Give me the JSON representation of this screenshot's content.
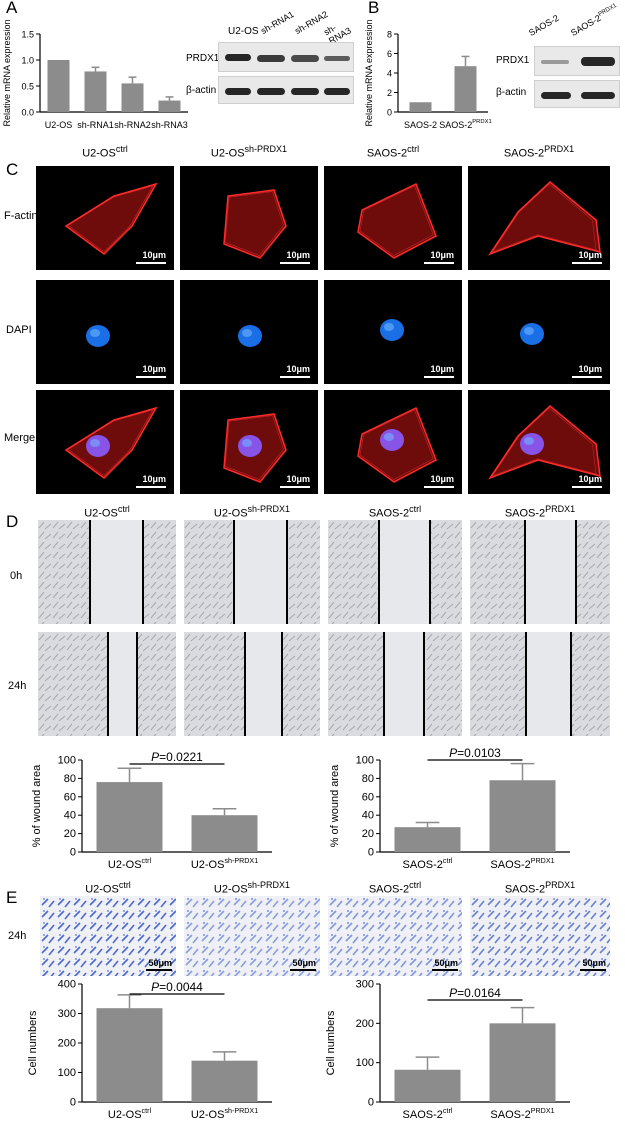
{
  "panel_labels": {
    "A": "A",
    "B": "B",
    "C": "C",
    "D": "D",
    "E": "E"
  },
  "panel_a": {
    "blot_headers": [
      "U2-OS",
      "sh-RNA1",
      "sh-RNA2",
      "sh-RNA3"
    ],
    "blot_rows": [
      "PRDX1",
      "β-actin"
    ],
    "chart": {
      "ylabel": "Relative mRNA expression",
      "yticks": [
        "0.0",
        "0.5",
        "1.0",
        "1.5"
      ],
      "categories": [
        "U2-OS",
        "sh-RNA1",
        "sh-RNA2",
        "sh-RNA3"
      ]
    }
  },
  "panel_b": {
    "blot_headers": [
      "SAOS-2",
      "SAOS-2",
      "PRDX1"
    ],
    "blot_rows": [
      "PRDX1",
      "β-actin"
    ],
    "chart": {
      "ylabel": "Relative mRNA expression",
      "yticks": [
        "0",
        "2",
        "4",
        "6",
        "8"
      ],
      "cat1": "SAOS-2",
      "cat2_base": "SAOS-2",
      "cat2_sup": "PRDX1"
    }
  },
  "panel_c": {
    "columns": [
      {
        "base": "U2-OS",
        "sup": "ctrl"
      },
      {
        "base": "U2-OS",
        "sup": "sh-PRDX1"
      },
      {
        "base": "SAOS-2",
        "sup": "ctrl"
      },
      {
        "base": "SAOS-2",
        "sup": "PRDX1"
      }
    ],
    "rows": [
      "F-actin",
      "DAPI",
      "Merge"
    ],
    "scale": "10μm"
  },
  "panel_d": {
    "columns": [
      {
        "base": "U2-OS",
        "sup": "ctrl"
      },
      {
        "base": "U2-OS",
        "sup": "sh-PRDX1"
      },
      {
        "base": "SAOS-2",
        "sup": "ctrl"
      },
      {
        "base": "SAOS-2",
        "sup": "PRDX1"
      }
    ],
    "rows": [
      "0h",
      "24h"
    ],
    "left_chart": {
      "ylabel": "% of wound area",
      "yticks": [
        "0",
        "20",
        "40",
        "60",
        "80",
        "100"
      ],
      "p_prefix": "P",
      "p_value": "=0.0221",
      "cat1_base": "U2-OS",
      "cat1_sup": "ctrl",
      "cat2_base": "U2-OS",
      "cat2_sup": "sh-PRDX1"
    },
    "right_chart": {
      "ylabel": "% of wound area",
      "yticks": [
        "0",
        "20",
        "40",
        "60",
        "80",
        "100"
      ],
      "p_prefix": "P",
      "p_value": "=0.0103",
      "cat1_base": "SAOS-2",
      "cat1_sup": "ctrl",
      "cat2_base": "SAOS-2",
      "cat2_sup": "PRDX1"
    }
  },
  "panel_e": {
    "columns": [
      {
        "base": "U2-OS",
        "sup": "ctrl"
      },
      {
        "base": "U2-OS",
        "sup": "sh-PRDX1"
      },
      {
        "base": "SAOS-2",
        "sup": "ctrl"
      },
      {
        "base": "SAOS-2",
        "sup": "PRDX1"
      }
    ],
    "row": "24h",
    "scale": "50μm",
    "left_chart": {
      "ylabel": "Cell numbers",
      "yticks": [
        "0",
        "100",
        "200",
        "300",
        "400"
      ],
      "p_prefix": "P",
      "p_value": "=0.0044",
      "cat1_base": "U2-OS",
      "cat1_sup": "ctrl",
      "cat2_base": "U2-OS",
      "cat2_sup": "sh-PRDX1"
    },
    "right_chart": {
      "ylabel": "Cell numbers",
      "yticks": [
        "0",
        "100",
        "200",
        "300"
      ],
      "p_prefix": "P",
      "p_value": "=0.0164",
      "cat1_base": "SAOS-2",
      "cat1_sup": "ctrl",
      "cat2_base": "SAOS-2",
      "cat2_sup": "PRDX1"
    }
  },
  "chart_data": [
    {
      "type": "bar",
      "categories": [
        "U2-OS",
        "sh-RNA1",
        "sh-RNA2",
        "sh-RNA3"
      ],
      "values": [
        1.0,
        0.78,
        0.55,
        0.22
      ],
      "errors": [
        0,
        0.08,
        0.12,
        0.07
      ],
      "ylim": [
        0,
        1.5
      ],
      "ylabel": "Relative mRNA expression",
      "bar_color": "#8c8c8c"
    },
    {
      "type": "bar",
      "categories": [
        "SAOS-2",
        "SAOS-2PRDX1"
      ],
      "values": [
        1.0,
        4.7
      ],
      "errors": [
        0,
        1.0
      ],
      "ylim": [
        0,
        8
      ],
      "ylabel": "Relative mRNA expression",
      "bar_color": "#8c8c8c"
    },
    {
      "type": "bar",
      "categories": [
        "U2-OSctrl",
        "U2-OSsh-PRDX1"
      ],
      "values": [
        76,
        40
      ],
      "errors": [
        15,
        7
      ],
      "ylim": [
        0,
        100
      ],
      "ylabel": "% of wound area",
      "bar_color": "#8c8c8c"
    },
    {
      "type": "bar",
      "categories": [
        "SAOS-2ctrl",
        "SAOS-2PRDX1"
      ],
      "values": [
        27,
        78
      ],
      "errors": [
        5,
        18
      ],
      "ylim": [
        0,
        100
      ],
      "ylabel": "% of wound area",
      "bar_color": "#8c8c8c"
    },
    {
      "type": "bar",
      "categories": [
        "U2-OSctrl",
        "U2-OSsh-PRDX1"
      ],
      "values": [
        318,
        140
      ],
      "errors": [
        45,
        30
      ],
      "ylim": [
        0,
        400
      ],
      "ylabel": "Cell numbers",
      "bar_color": "#8c8c8c"
    },
    {
      "type": "bar",
      "categories": [
        "SAOS-2ctrl",
        "SAOS-2PRDX1"
      ],
      "values": [
        82,
        200
      ],
      "errors": [
        32,
        40
      ],
      "ylim": [
        0,
        300
      ],
      "ylabel": "Cell numbers",
      "bar_color": "#8c8c8c"
    }
  ]
}
